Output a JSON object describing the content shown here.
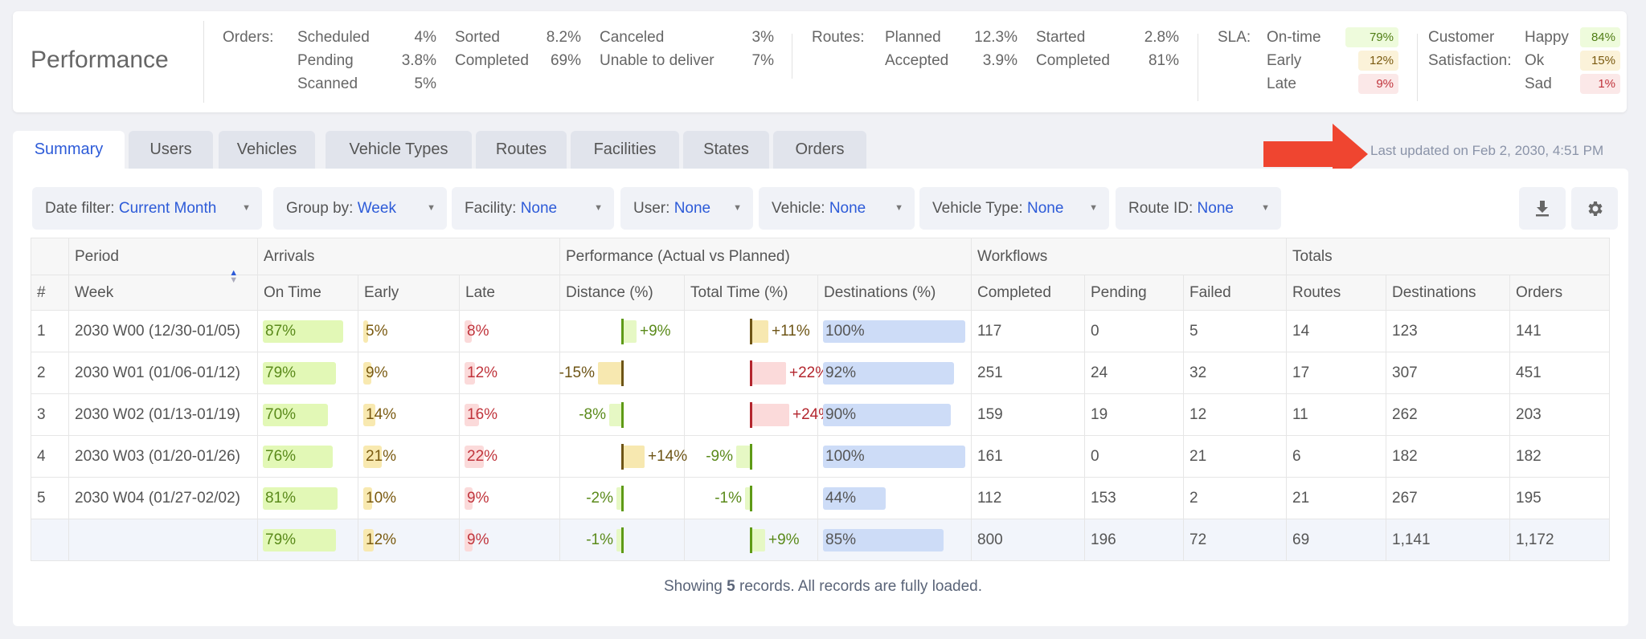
{
  "header": {
    "title": "Performance",
    "orders": {
      "label": "Orders:",
      "items": [
        [
          "Scheduled",
          "4%"
        ],
        [
          "Pending",
          "3.8%"
        ],
        [
          "Scanned",
          "5%"
        ],
        [
          "Sorted",
          "8.2%"
        ],
        [
          "Completed",
          "69%"
        ],
        [
          "Canceled",
          "3%"
        ],
        [
          "Unable to deliver",
          "7%"
        ]
      ]
    },
    "routes": {
      "label": "Routes:",
      "items": [
        [
          "Planned",
          "12.3%"
        ],
        [
          "Accepted",
          "3.9%"
        ],
        [
          "Started",
          "2.8%"
        ],
        [
          "Completed",
          "81%"
        ]
      ]
    },
    "sla": {
      "label": "SLA:",
      "items": [
        [
          "On-time",
          "79%"
        ],
        [
          "Early",
          "12%"
        ],
        [
          "Late",
          "9%"
        ]
      ]
    },
    "satisfaction": {
      "label1": "Customer",
      "label2": "Satisfaction:",
      "items": [
        [
          "Happy",
          "84%"
        ],
        [
          "Ok",
          "15%"
        ],
        [
          "Sad",
          "1%"
        ]
      ]
    }
  },
  "tabs": [
    "Summary",
    "Users",
    "Vehicles",
    "Vehicle Types",
    "Routes",
    "Facilities",
    "States",
    "Orders"
  ],
  "last_updated": "Last updated on Feb 2, 2030, 4:51 PM",
  "filters": [
    [
      "Date filter:",
      "Current Month"
    ],
    [
      "Group by:",
      "Week"
    ],
    [
      "Facility:",
      "None"
    ],
    [
      "User:",
      "None"
    ],
    [
      "Vehicle:",
      "None"
    ],
    [
      "Vehicle Type:",
      "None"
    ],
    [
      "Route ID:",
      "None"
    ]
  ],
  "table": {
    "groups": [
      "",
      "Period",
      "Arrivals",
      "Performance (Actual vs Planned)",
      "Workflows",
      "Totals"
    ],
    "columns": [
      "#",
      "Week",
      "On Time",
      "Early",
      "Late",
      "Distance (%)",
      "Total Time (%)",
      "Destinations (%)",
      "Completed",
      "Pending",
      "Failed",
      "Routes",
      "Destinations",
      "Orders"
    ],
    "rows": [
      {
        "n": "1",
        "week": "2030 W00 (12/30-01/05)",
        "ontime": 87,
        "early": 5,
        "late": 8,
        "dist": 9,
        "time": 11,
        "dest": 100,
        "completed": "117",
        "pending": "0",
        "failed": "5",
        "routes": "14",
        "destinations": "123",
        "orders": "141"
      },
      {
        "n": "2",
        "week": "2030 W01 (01/06-01/12)",
        "ontime": 79,
        "early": 9,
        "late": 12,
        "dist": -15,
        "time": 22,
        "dest": 92,
        "completed": "251",
        "pending": "24",
        "failed": "32",
        "routes": "17",
        "destinations": "307",
        "orders": "451"
      },
      {
        "n": "3",
        "week": "2030 W02 (01/13-01/19)",
        "ontime": 70,
        "early": 14,
        "late": 16,
        "dist": -8,
        "time": 24,
        "dest": 90,
        "completed": "159",
        "pending": "19",
        "failed": "12",
        "routes": "11",
        "destinations": "262",
        "orders": "203"
      },
      {
        "n": "4",
        "week": "2030 W03 (01/20-01/26)",
        "ontime": 76,
        "early": 21,
        "late": 22,
        "dist": 14,
        "time": -9,
        "dest": 100,
        "completed": "161",
        "pending": "0",
        "failed": "21",
        "routes": "6",
        "destinations": "182",
        "orders": "182"
      },
      {
        "n": "5",
        "week": "2030 W04 (01/27-02/02)",
        "ontime": 81,
        "early": 10,
        "late": 9,
        "dist": -2,
        "time": -1,
        "dest": 44,
        "completed": "112",
        "pending": "153",
        "failed": "2",
        "routes": "21",
        "destinations": "267",
        "orders": "195"
      }
    ],
    "total": {
      "n": "",
      "week": "",
      "ontime": 79,
      "early": 12,
      "late": 9,
      "dist": -1,
      "time": 9,
      "dest": 85,
      "completed": "800",
      "pending": "196",
      "failed": "72",
      "routes": "69",
      "destinations": "1,141",
      "orders": "1,172"
    }
  },
  "footer": {
    "prefix": "Showing ",
    "count": "5",
    "suffix": " records. All records are fully loaded."
  }
}
